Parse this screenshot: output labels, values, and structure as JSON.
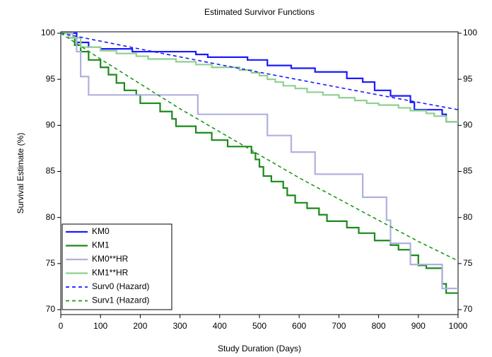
{
  "chart_data": {
    "type": "line",
    "title": "Estimated Survivor Functions",
    "x_label": "Study Duration (Days)",
    "y_label": "Survival Estimate (%)",
    "xlim": [
      0,
      1000
    ],
    "xticks": [
      0,
      100,
      200,
      300,
      400,
      500,
      600,
      700,
      800,
      900,
      1000
    ],
    "ylim": [
      70,
      100
    ],
    "yticks": [
      70,
      75,
      80,
      85,
      90,
      95,
      100
    ],
    "y2lim": [
      70,
      100
    ],
    "y2ticks": [
      70,
      75,
      80,
      85,
      90,
      95,
      100
    ],
    "legend": "bottom-left",
    "series": [
      {
        "name": "KM0",
        "color": "#1a1aff",
        "style": "solid",
        "step": true,
        "x": [
          0,
          40,
          70,
          100,
          180,
          340,
          370,
          470,
          520,
          580,
          640,
          720,
          760,
          790,
          830,
          880,
          890,
          960,
          970,
          1000
        ],
        "values": [
          100,
          99,
          98.5,
          98.3,
          98,
          97.7,
          97.4,
          97.1,
          96.5,
          96.2,
          95.8,
          95.1,
          94.7,
          93.8,
          93.2,
          92.5,
          91.7,
          91.2,
          90.4,
          90.4
        ]
      },
      {
        "name": "KM1",
        "color": "#1a8a1a",
        "style": "solid",
        "step": true,
        "x": [
          0,
          20,
          35,
          50,
          70,
          100,
          120,
          140,
          160,
          190,
          200,
          250,
          280,
          290,
          340,
          380,
          420,
          480,
          490,
          500,
          510,
          530,
          560,
          570,
          590,
          620,
          650,
          670,
          720,
          750,
          790,
          830,
          850,
          880,
          900,
          920,
          960,
          970,
          1000
        ],
        "values": [
          100,
          99.5,
          98.7,
          98,
          97.1,
          96.3,
          95.5,
          94.6,
          93.8,
          93.3,
          92.4,
          91.5,
          90.7,
          89.9,
          89.2,
          88.4,
          87.7,
          87,
          86.3,
          85.5,
          84.5,
          83.9,
          83.2,
          82.4,
          81.6,
          81,
          80.3,
          79.6,
          78.9,
          78.3,
          77.5,
          77,
          76.5,
          75.9,
          74.8,
          74.5,
          72.8,
          71.8,
          71.8
        ]
      },
      {
        "name": "KM0**HR",
        "color": "#b0b0e0",
        "style": "solid",
        "step": true,
        "x": [
          0,
          30,
          40,
          50,
          70,
          345,
          520,
          580,
          640,
          760,
          820,
          830,
          880,
          960,
          1000
        ],
        "values": [
          100,
          99.5,
          98,
          95.3,
          93.3,
          91.2,
          88.9,
          87.1,
          84.7,
          82.2,
          79.7,
          77.2,
          74.9,
          72.3,
          72.3
        ]
      },
      {
        "name": "KM1**HR",
        "color": "#8fd08f",
        "style": "solid",
        "step": true,
        "x": [
          0,
          20,
          50,
          100,
          140,
          190,
          220,
          290,
          340,
          380,
          450,
          480,
          500,
          520,
          540,
          560,
          590,
          620,
          660,
          700,
          740,
          770,
          800,
          850,
          880,
          920,
          940,
          970,
          1000
        ],
        "values": [
          100,
          99.5,
          98.5,
          98.1,
          97.8,
          97.5,
          97.2,
          96.9,
          96.6,
          96.3,
          96,
          95.7,
          95.4,
          95,
          94.7,
          94.3,
          94,
          93.6,
          93.3,
          93,
          92.7,
          92.4,
          92.2,
          91.9,
          91.6,
          91.3,
          91,
          90.4,
          90.4
        ]
      },
      {
        "name": "Surv0 (Hazard)",
        "color": "#1a1aff",
        "style": "dashed",
        "step": false,
        "x": [
          0,
          100,
          200,
          300,
          400,
          500,
          600,
          700,
          800,
          900,
          1000
        ],
        "values": [
          100,
          99.14,
          98.28,
          97.43,
          96.59,
          95.76,
          94.94,
          94.12,
          93.3,
          92.5,
          91.7
        ]
      },
      {
        "name": "Surv1 (Hazard)",
        "color": "#1a9a1a",
        "style": "dashed",
        "step": false,
        "x": [
          0,
          100,
          200,
          300,
          400,
          500,
          600,
          700,
          800,
          900,
          1000
        ],
        "values": [
          100,
          97.2,
          94.5,
          91.8,
          89.3,
          86.8,
          84.3,
          82,
          79.7,
          77.4,
          75.3
        ]
      }
    ]
  }
}
